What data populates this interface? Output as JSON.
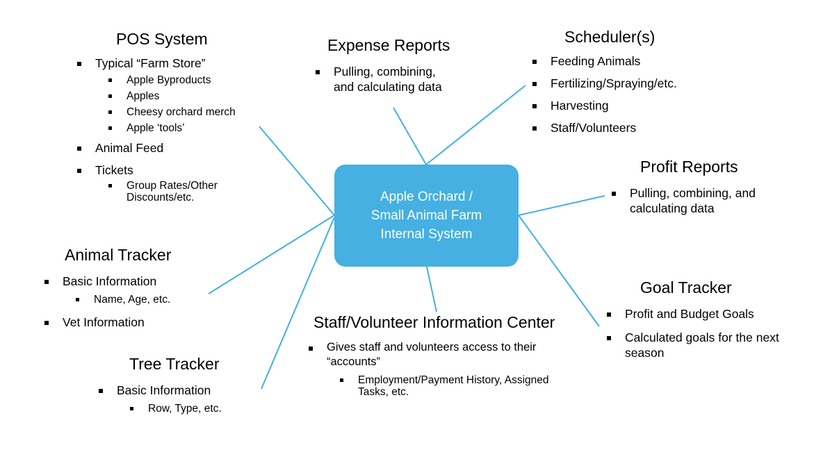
{
  "colors": {
    "hub_fill": "#45b0e1",
    "connector": "#45b0e1",
    "text": "#000000"
  },
  "hub": {
    "label": "Apple Orchard /\nSmall Animal Farm\nInternal System"
  },
  "pos": {
    "title": "POS System",
    "typical": "Typical “Farm Store”",
    "sub": [
      "Apple Byproducts",
      "Apples",
      "Cheesy orchard merch",
      "Apple ‘tools’"
    ],
    "feed": "Animal Feed",
    "tickets": "Tickets",
    "tickets_sub": "Group Rates/Other Discounts/etc."
  },
  "expense": {
    "title": "Expense Reports",
    "item": "Pulling, combining, and calculating data"
  },
  "scheduler": {
    "title": "Scheduler(s)",
    "items": [
      "Feeding Animals",
      "Fertilizing/Spraying/etc.",
      "Harvesting",
      "Staff/Volunteers"
    ]
  },
  "profit": {
    "title": "Profit Reports",
    "item": "Pulling, combining, and calculating data"
  },
  "animal": {
    "title": "Animal Tracker",
    "basic": "Basic Information",
    "basic_sub": "Name, Age, etc.",
    "vet": "Vet Information"
  },
  "goal": {
    "title": "Goal Tracker",
    "items": [
      "Profit and Budget Goals",
      "Calculated goals for the next season"
    ]
  },
  "staff": {
    "title": "Staff/Volunteer Information Center",
    "item": "Gives staff and volunteers access to their “accounts”",
    "sub": "Employment/Payment History, Assigned Tasks, etc."
  },
  "tree": {
    "title": "Tree Tracker",
    "basic": "Basic Information",
    "sub": "Row, Type, etc."
  }
}
